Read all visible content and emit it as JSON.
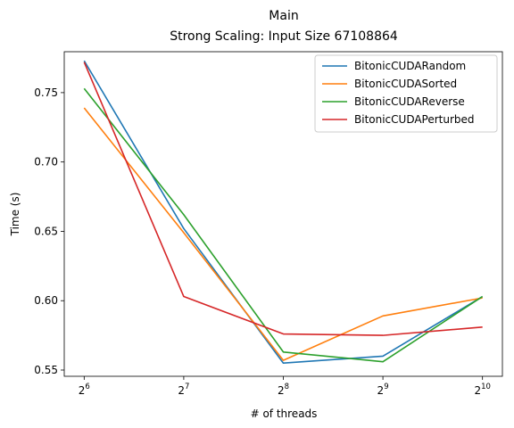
{
  "chart_data": {
    "type": "line",
    "title": "Main",
    "subtitle": "Strong Scaling: Input Size 67108864",
    "xlabel": "# of threads",
    "ylabel": "Time (s)",
    "x": [
      64,
      128,
      256,
      512,
      1024
    ],
    "x_scale": "log2",
    "x_tick_base": "2",
    "x_tick_exponents": [
      "6",
      "7",
      "8",
      "9",
      "10"
    ],
    "ylim": [
      0.5455,
      0.7795
    ],
    "yticks": [
      0.55,
      0.6,
      0.65,
      0.7,
      0.75
    ],
    "ytick_labels": [
      "0.55",
      "0.60",
      "0.65",
      "0.70",
      "0.75"
    ],
    "grid": false,
    "legend_position": "top-right",
    "series": [
      {
        "name": "BitonicCUDARandom",
        "color": "#1f77b4",
        "values": [
          0.773,
          0.652,
          0.555,
          0.56,
          0.603
        ]
      },
      {
        "name": "BitonicCUDASorted",
        "color": "#ff7f0e",
        "values": [
          0.739,
          0.649,
          0.557,
          0.589,
          0.602
        ]
      },
      {
        "name": "BitonicCUDAReverse",
        "color": "#2ca02c",
        "values": [
          0.753,
          0.662,
          0.563,
          0.556,
          0.603
        ]
      },
      {
        "name": "BitonicCUDAPerturbed",
        "color": "#d62728",
        "values": [
          0.772,
          0.603,
          0.576,
          0.575,
          0.581
        ]
      }
    ]
  }
}
